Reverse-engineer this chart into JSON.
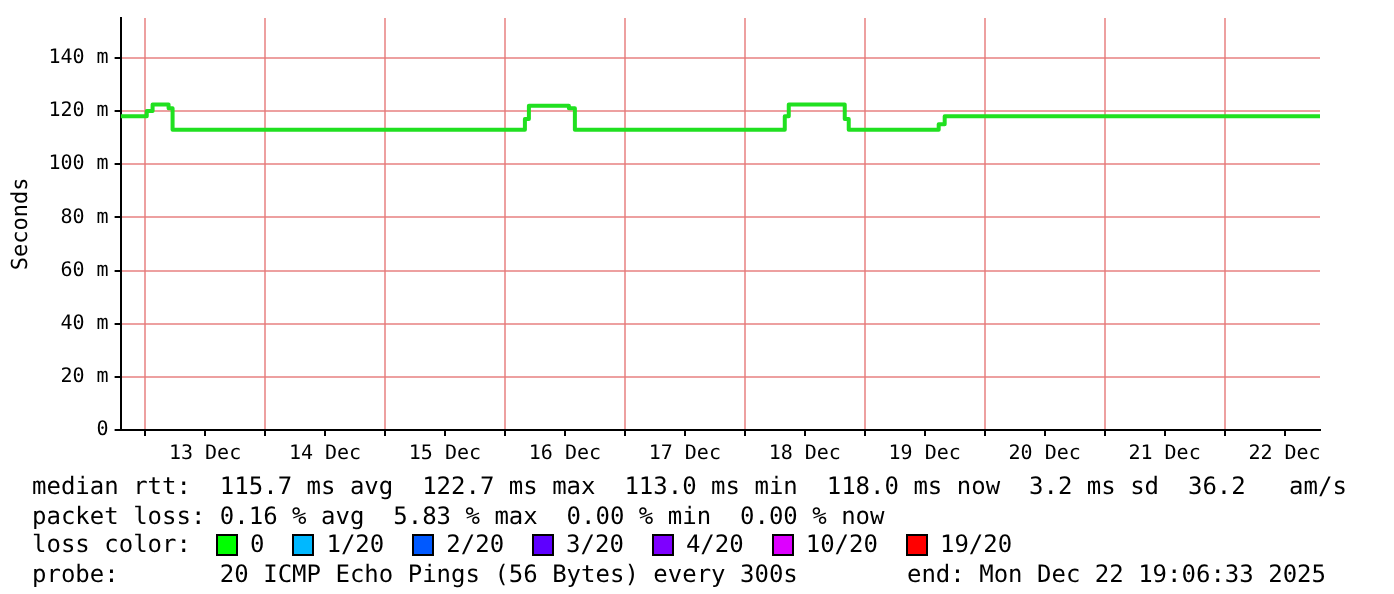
{
  "chart_data": {
    "type": "step",
    "ylabel": "Seconds",
    "x": [
      "2025-12-12T19:06",
      "2025-12-13T00:20",
      "2025-12-13T01:30",
      "2025-12-13T04:42",
      "2025-12-13T05:30",
      "2025-12-16T04:00",
      "2025-12-16T04:48",
      "2025-12-16T12:48",
      "2025-12-16T14:00",
      "2025-12-18T08:00",
      "2025-12-18T08:48",
      "2025-12-18T20:00",
      "2025-12-18T20:48",
      "2025-12-19T14:48",
      "2025-12-19T16:00",
      "2025-12-22T19:06"
    ],
    "series": [
      {
        "color": "#20e020",
        "values": [
          118,
          120,
          122.5,
          121,
          113,
          117,
          122,
          121,
          113,
          118,
          122.5,
          117,
          113,
          115,
          118,
          118
        ]
      }
    ],
    "xlim": [
      "2025-12-12T19:06",
      "2025-12-22T19:06"
    ],
    "xticks": [
      {
        "value": "2025-12-13T00:00",
        "label": null
      },
      {
        "value": "2025-12-13T12:00",
        "label": "13 Dec"
      },
      {
        "value": "2025-12-14T00:00",
        "label": null
      },
      {
        "value": "2025-12-14T12:00",
        "label": "14 Dec"
      },
      {
        "value": "2025-12-15T00:00",
        "label": null
      },
      {
        "value": "2025-12-15T12:00",
        "label": "15 Dec"
      },
      {
        "value": "2025-12-16T00:00",
        "label": null
      },
      {
        "value": "2025-12-16T12:00",
        "label": "16 Dec"
      },
      {
        "value": "2025-12-17T00:00",
        "label": null
      },
      {
        "value": "2025-12-17T12:00",
        "label": "17 Dec"
      },
      {
        "value": "2025-12-18T00:00",
        "label": null
      },
      {
        "value": "2025-12-18T12:00",
        "label": "18 Dec"
      },
      {
        "value": "2025-12-19T00:00",
        "label": null
      },
      {
        "value": "2025-12-19T12:00",
        "label": "19 Dec"
      },
      {
        "value": "2025-12-20T00:00",
        "label": null
      },
      {
        "value": "2025-12-20T12:00",
        "label": "20 Dec"
      },
      {
        "value": "2025-12-21T00:00",
        "label": null
      },
      {
        "value": "2025-12-21T12:00",
        "label": "21 Dec"
      },
      {
        "value": "2025-12-22T00:00",
        "label": null
      },
      {
        "value": "2025-12-22T12:00",
        "label": "22 Dec"
      }
    ],
    "ylim": [
      0,
      155
    ],
    "yticks": [
      0,
      {
        "value": 20,
        "label": "20 m"
      },
      {
        "value": 40,
        "label": "40 m"
      },
      {
        "value": 60,
        "label": "60 m"
      },
      {
        "value": 80,
        "label": "80 m"
      },
      {
        "value": 100,
        "label": "100 m"
      },
      {
        "value": 120,
        "label": "120 m"
      },
      {
        "value": 140,
        "label": "140 m"
      }
    ],
    "grid": true,
    "legend": false,
    "marker": "none",
    "line_style": "solid",
    "annotations": [
      "median rtt:  115.7 ms avg  122.7 ms max  113.0 ms min  118.0 ms now  3.2 ms sd  36.2   am/s",
      "packet loss: 0.16 % avg  5.83 % max  0.00 % min  0.00 % now",
      "loss color:",
      "0",
      "1/20",
      "2/20",
      "3/20",
      "4/20",
      "10/20",
      "19/20",
      "probe:       20 ICMP Echo Pings (56 Bytes) every 300s",
      "end: Mon Dec 22 19:06:33 2025"
    ]
  }
}
